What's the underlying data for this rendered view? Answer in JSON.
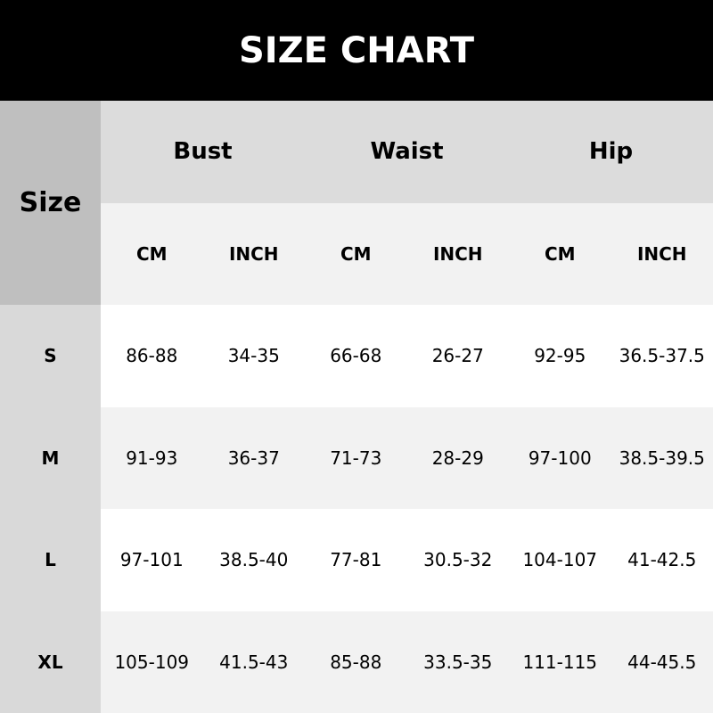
{
  "title": "SIZE CHART",
  "chart_data": {
    "type": "table",
    "title": "SIZE CHART",
    "size_header": "Size",
    "groups": [
      "Bust",
      "Waist",
      "Hip"
    ],
    "units": [
      "CM",
      "INCH",
      "CM",
      "INCH",
      "CM",
      "INCH"
    ],
    "rows": [
      {
        "size": "S",
        "values": [
          "86-88",
          "34-35",
          "66-68",
          "26-27",
          "92-95",
          "36.5-37.5"
        ]
      },
      {
        "size": "M",
        "values": [
          "91-93",
          "36-37",
          "71-73",
          "28-29",
          "97-100",
          "38.5-39.5"
        ]
      },
      {
        "size": "L",
        "values": [
          "97-101",
          "38.5-40",
          "77-81",
          "30.5-32",
          "104-107",
          "41-42.5"
        ]
      },
      {
        "size": "XL",
        "values": [
          "105-109",
          "41.5-43",
          "85-88",
          "33.5-35",
          "111-115",
          "44-45.5"
        ]
      }
    ]
  }
}
